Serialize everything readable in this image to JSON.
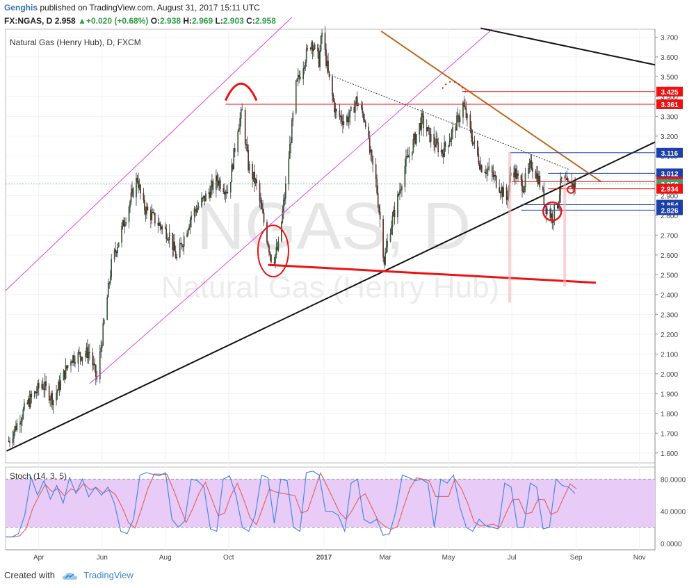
{
  "header": {
    "author": "Genghis",
    "published_text": "published on TradingView.com, August 31, 2017 15:11 UTC",
    "symbol": "FX:NGAS, D",
    "price": "2.958",
    "change": "+0.020 (+0.68%)",
    "o_label": "O:",
    "o": "2.938",
    "h_label": "H:",
    "h": "2.969",
    "l_label": "L:",
    "l": "2.903",
    "c_label": "C:",
    "c": "2.958"
  },
  "footer": {
    "created_with": "Created with",
    "brand": "TradingView"
  },
  "colors": {
    "bull": "#2e7d32",
    "bear": "#8b2e1e",
    "stoch_k": "#4a86e8",
    "stoch_d": "#e06666",
    "stoch_band": "#e8ccf7",
    "red": "#e11",
    "blue": "#1c3fa8"
  },
  "chart_data": {
    "type": "candlestick",
    "title": "Natural Gas (Henry Hub), D, FXCM",
    "watermark_symbol": "NGAS, D",
    "watermark_name": "Natural Gas (Henry Hub)",
    "ylim": [
      1.55,
      3.74
    ],
    "y_ticks": [
      "1.600",
      "1.700",
      "1.800",
      "1.900",
      "2.000",
      "2.100",
      "2.200",
      "2.300",
      "2.400",
      "2.500",
      "2.600",
      "2.700",
      "2.800",
      "2.900",
      "3.000",
      "3.100",
      "3.200",
      "3.300",
      "3.400",
      "3.500",
      "3.600",
      "3.700"
    ],
    "x_ticks": [
      "Apr",
      "Jun",
      "Aug",
      "Oct",
      "2017",
      "Mar",
      "May",
      "Jul",
      "Sep",
      "Nov"
    ],
    "x_tick_dates": [
      "2016-04-01",
      "2016-06-01",
      "2016-08-01",
      "2016-10-01",
      "2017-01-01",
      "2017-03-01",
      "2017-05-01",
      "2017-07-01",
      "2017-09-01",
      "2017-11-01"
    ],
    "x_range": [
      "2016-02-29",
      "2017-11-16"
    ],
    "last_date": "2017-08-31",
    "price_path": [
      [
        "2016-03-03",
        1.66
      ],
      [
        "2016-03-20",
        1.84
      ],
      [
        "2016-04-04",
        1.95
      ],
      [
        "2016-04-15",
        1.87
      ],
      [
        "2016-05-02",
        2.08
      ],
      [
        "2016-05-20",
        2.11
      ],
      [
        "2016-05-27",
        1.97
      ],
      [
        "2016-06-10",
        2.55
      ],
      [
        "2016-06-24",
        2.8
      ],
      [
        "2016-07-05",
        2.99
      ],
      [
        "2016-07-10",
        2.85
      ],
      [
        "2016-07-25",
        2.76
      ],
      [
        "2016-08-05",
        2.7
      ],
      [
        "2016-08-12",
        2.58
      ],
      [
        "2016-08-26",
        2.8
      ],
      [
        "2016-09-10",
        2.9
      ],
      [
        "2016-09-20",
        2.98
      ],
      [
        "2016-10-01",
        2.92
      ],
      [
        "2016-10-10",
        3.25
      ],
      [
        "2016-10-14",
        3.32
      ],
      [
        "2016-10-20",
        3.05
      ],
      [
        "2016-10-28",
        2.95
      ],
      [
        "2016-11-05",
        2.74
      ],
      [
        "2016-11-12",
        2.56
      ],
      [
        "2016-11-18",
        2.64
      ],
      [
        "2016-11-25",
        2.94
      ],
      [
        "2016-12-05",
        3.45
      ],
      [
        "2016-12-14",
        3.6
      ],
      [
        "2016-12-20",
        3.68
      ],
      [
        "2016-12-27",
        3.58
      ],
      [
        "2016-12-30",
        3.72
      ],
      [
        "2017-01-06",
        3.48
      ],
      [
        "2017-01-12",
        3.32
      ],
      [
        "2017-01-20",
        3.28
      ],
      [
        "2017-01-26",
        3.3
      ],
      [
        "2017-02-01",
        3.38
      ],
      [
        "2017-02-10",
        3.28
      ],
      [
        "2017-02-14",
        3.12
      ],
      [
        "2017-02-20",
        2.97
      ],
      [
        "2017-02-24",
        2.78
      ],
      [
        "2017-02-28",
        2.57
      ],
      [
        "2017-03-05",
        2.72
      ],
      [
        "2017-03-12",
        2.86
      ],
      [
        "2017-03-20",
        3.05
      ],
      [
        "2017-04-05",
        3.28
      ],
      [
        "2017-04-15",
        3.18
      ],
      [
        "2017-04-25",
        3.12
      ],
      [
        "2017-05-03",
        3.2
      ],
      [
        "2017-05-10",
        3.28
      ],
      [
        "2017-05-15",
        3.36
      ],
      [
        "2017-05-22",
        3.22
      ],
      [
        "2017-06-01",
        3.05
      ],
      [
        "2017-06-10",
        3.02
      ],
      [
        "2017-06-20",
        2.94
      ],
      [
        "2017-06-26",
        2.88
      ],
      [
        "2017-07-01",
        3.05
      ],
      [
        "2017-07-07",
        2.98
      ],
      [
        "2017-07-12",
        2.95
      ],
      [
        "2017-07-20",
        3.06
      ],
      [
        "2017-07-27",
        2.98
      ],
      [
        "2017-08-03",
        2.84
      ],
      [
        "2017-08-09",
        2.79
      ],
      [
        "2017-08-14",
        2.86
      ],
      [
        "2017-08-18",
        2.98
      ],
      [
        "2017-08-24",
        2.95
      ],
      [
        "2017-08-31",
        2.958
      ]
    ],
    "horizontal_levels": [
      {
        "value": 3.425,
        "label": "3.425",
        "color": "#e11"
      },
      {
        "value": 3.361,
        "label": "3.361",
        "color": "#e11"
      },
      {
        "value": 3.116,
        "label": "3.116",
        "color": "#1c3fa8"
      },
      {
        "value": 3.012,
        "label": "3.012",
        "color": "#1c3fa8"
      },
      {
        "value": 2.97,
        "label": "2.970",
        "color": "#e11"
      },
      {
        "value": 2.958,
        "label": "2.958",
        "color": "#4a9d6e"
      },
      {
        "value": 2.934,
        "label": "2.934",
        "color": "#e11"
      },
      {
        "value": 2.854,
        "label": "2.854",
        "color": "#1c3fa8"
      },
      {
        "value": 2.826,
        "label": "2.826",
        "color": "#1c3fa8"
      }
    ],
    "stoch": {
      "title": "Stoch (14, 3, 5)",
      "ylim": [
        -8,
        95
      ],
      "ticks": [
        "0.0000",
        "40.0000",
        "80.0000"
      ],
      "band": [
        20,
        80
      ],
      "k": [
        8,
        8,
        12,
        35,
        82,
        60,
        78,
        55,
        72,
        50,
        82,
        62,
        80,
        58,
        70,
        60,
        70,
        50,
        15,
        12,
        30,
        85,
        88,
        86,
        84,
        88,
        30,
        20,
        28,
        80,
        78,
        70,
        18,
        15,
        80,
        84,
        60,
        20,
        15,
        35,
        85,
        82,
        25,
        80,
        78,
        20,
        15,
        88,
        90,
        85,
        40,
        40,
        35,
        15,
        75,
        80,
        30,
        25,
        30,
        10,
        12,
        40,
        85,
        82,
        78,
        80,
        75,
        20,
        80,
        75,
        85,
        45,
        20,
        15,
        30,
        22,
        20,
        18,
        75,
        70,
        20,
        20,
        75,
        70,
        18,
        20,
        80,
        72,
        70,
        62
      ]
    }
  }
}
